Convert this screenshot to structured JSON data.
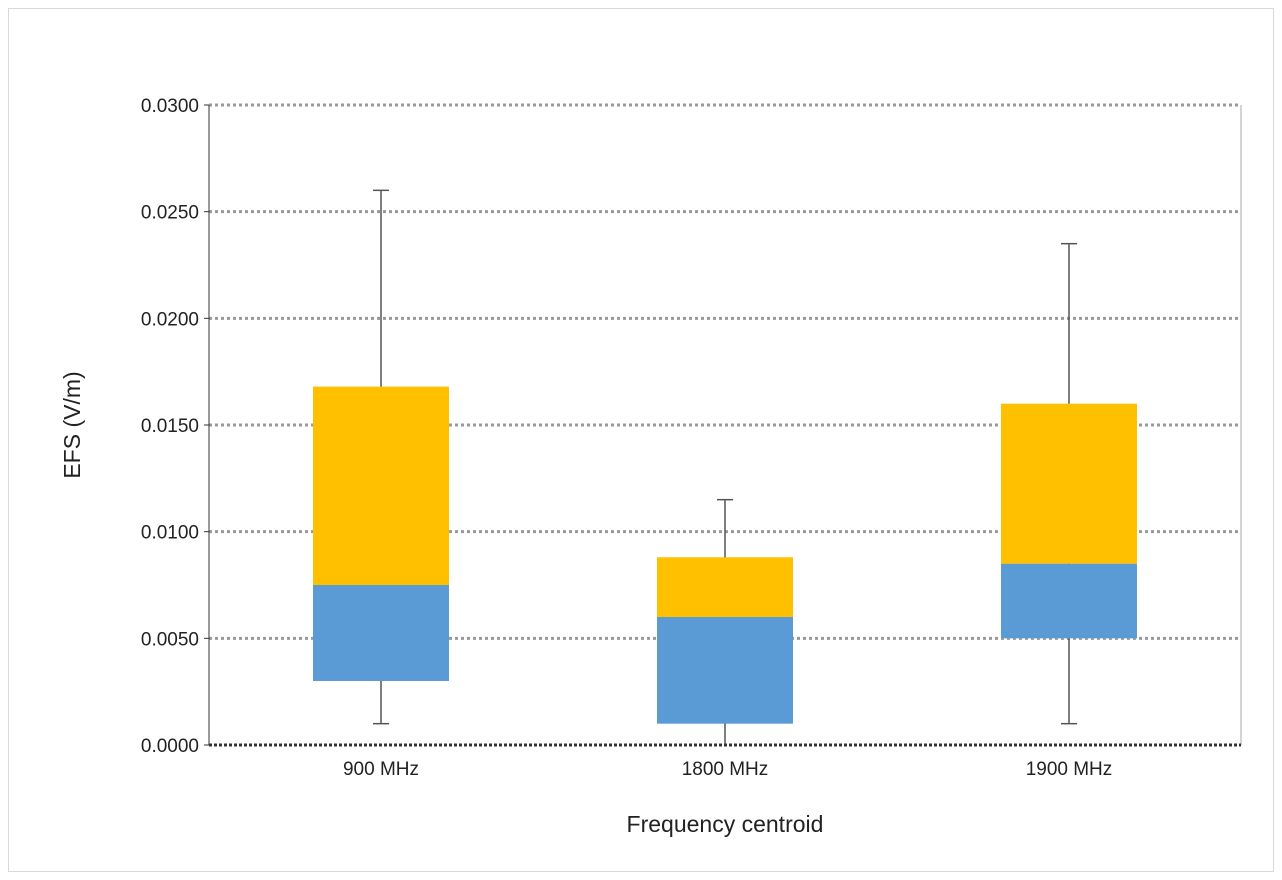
{
  "chart_data": {
    "type": "box",
    "xlabel": "Frequency centroid",
    "ylabel": "EFS (V/m)",
    "ylim": [
      0,
      0.03
    ],
    "y_ticks": [
      "0.0000",
      "0.0050",
      "0.0100",
      "0.0150",
      "0.0200",
      "0.0250",
      "0.0300"
    ],
    "y_tick_values": [
      0,
      0.005,
      0.01,
      0.015,
      0.02,
      0.025,
      0.03
    ],
    "grid": "horizontal dotted",
    "categories": [
      "900 MHz",
      "1800 MHz",
      "1900 MHz"
    ],
    "series": [
      {
        "values": [
          {
            "min": 0.001,
            "q1": 0.003,
            "median": 0.0075,
            "q3": 0.0168,
            "max": 0.026
          },
          {
            "min": 0.0,
            "q1": 0.001,
            "median": 0.006,
            "q3": 0.0088,
            "max": 0.0115
          },
          {
            "min": 0.001,
            "q1": 0.005,
            "median": 0.0085,
            "q3": 0.016,
            "max": 0.0235
          }
        ]
      }
    ],
    "colors": {
      "lower_box": "#5b9bd5",
      "upper_box": "#ffc000",
      "whisker": "#555555",
      "grid": "#999999",
      "axis": "#333333"
    }
  }
}
